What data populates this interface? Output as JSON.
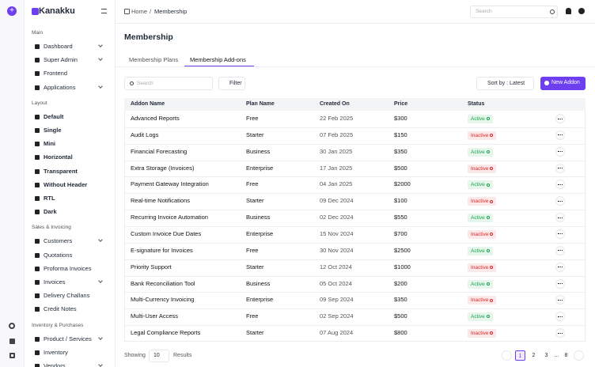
{
  "sidebar": {
    "logo": "Kanakku",
    "sections": [
      {
        "title": "Main",
        "items": [
          {
            "label": "Dashboard",
            "expandable": true
          },
          {
            "label": "Super Admin",
            "expandable": true
          },
          {
            "label": "Frontend",
            "expandable": false
          },
          {
            "label": "Applications",
            "expandable": true
          }
        ]
      },
      {
        "title": "Layout",
        "items": [
          {
            "label": "Default",
            "expandable": false
          },
          {
            "label": "Single",
            "expandable": false
          },
          {
            "label": "Mini",
            "expandable": false
          },
          {
            "label": "Horizontal",
            "expandable": false
          },
          {
            "label": "Transparent",
            "expandable": false
          },
          {
            "label": "Without Header",
            "expandable": false
          },
          {
            "label": "RTL",
            "expandable": false
          },
          {
            "label": "Dark",
            "expandable": false
          }
        ]
      },
      {
        "title": "Sales & Invoicing",
        "items": [
          {
            "label": "Customers",
            "expandable": true
          },
          {
            "label": "Quotations",
            "expandable": false
          },
          {
            "label": "Proforma Invoices",
            "expandable": false
          },
          {
            "label": "Invoices",
            "expandable": true
          },
          {
            "label": "Delivery Challans",
            "expandable": false
          },
          {
            "label": "Credit Notes",
            "expandable": false
          }
        ]
      },
      {
        "title": "Inventory & Purchases",
        "items": [
          {
            "label": "Product / Services",
            "expandable": true
          },
          {
            "label": "Inventory",
            "expandable": false
          },
          {
            "label": "Vendors",
            "expandable": true
          }
        ]
      }
    ]
  },
  "header": {
    "breadcrumb": [
      "Home",
      "Membership"
    ],
    "separator": "/",
    "search_placeholder": "Search"
  },
  "page": {
    "title": "Membership",
    "tabs": [
      "Membership Plans",
      "Membership Add-ons"
    ],
    "active_tab": 1
  },
  "toolbar": {
    "search_placeholder": "Search",
    "filter": "Filter",
    "sort": "Sort by : Latest",
    "new_button": "New Addon"
  },
  "table": {
    "columns": [
      "Addon Name",
      "Plan Name",
      "Created On",
      "Price",
      "Status"
    ],
    "status_colors": {
      "Active": "#16a34a",
      "Inactive": "#dc2626"
    },
    "rows": [
      [
        "Advanced Reports",
        "Free",
        "22 Feb 2025",
        "$300",
        "Active"
      ],
      [
        "Audit Logs",
        "Starter",
        "07 Feb 2025",
        "$150",
        "Inactive"
      ],
      [
        "Financial Forecasting",
        "Business",
        "30 Jan 2025",
        "$350",
        "Active"
      ],
      [
        "Extra Storage (Invoices)",
        "Enterprise",
        "17 Jan 2025",
        "$500",
        "Inactive"
      ],
      [
        "Payment Gateway Integration",
        "Free",
        "04 Jan 2025",
        "$2000",
        "Active"
      ],
      [
        "Real-time Notifications",
        "Starter",
        "09 Dec 2024",
        "$100",
        "Inactive"
      ],
      [
        "Recurring Invoice Automation",
        "Business",
        "02 Dec 2024",
        "$550",
        "Active"
      ],
      [
        "Custom Invoice Due Dates",
        "Enterprise",
        "15 Nov 2024",
        "$700",
        "Inactive"
      ],
      [
        "E-signature for Invoices",
        "Free",
        "30 Nov 2024",
        "$2500",
        "Active"
      ],
      [
        "Priority Support",
        "Starter",
        "12 Oct 2024",
        "$1000",
        "Inactive"
      ],
      [
        "Bank Reconciliation Tool",
        "Business",
        "05 Oct 2024",
        "$200",
        "Active"
      ],
      [
        "Multi-Currency Invoicing",
        "Enterprise",
        "09 Sep 2024",
        "$350",
        "Inactive"
      ],
      [
        "Multi-User Access",
        "Free",
        "02 Sep 2024",
        "$500",
        "Active"
      ],
      [
        "Legal Compliance Reports",
        "Starter",
        "07 Aug 2024",
        "$800",
        "Inactive"
      ]
    ]
  },
  "pagination": {
    "showing": "Showing",
    "per_page": "10",
    "results": "Results",
    "pages": [
      "1",
      "2",
      "3",
      "...",
      "8"
    ],
    "active": 0
  }
}
